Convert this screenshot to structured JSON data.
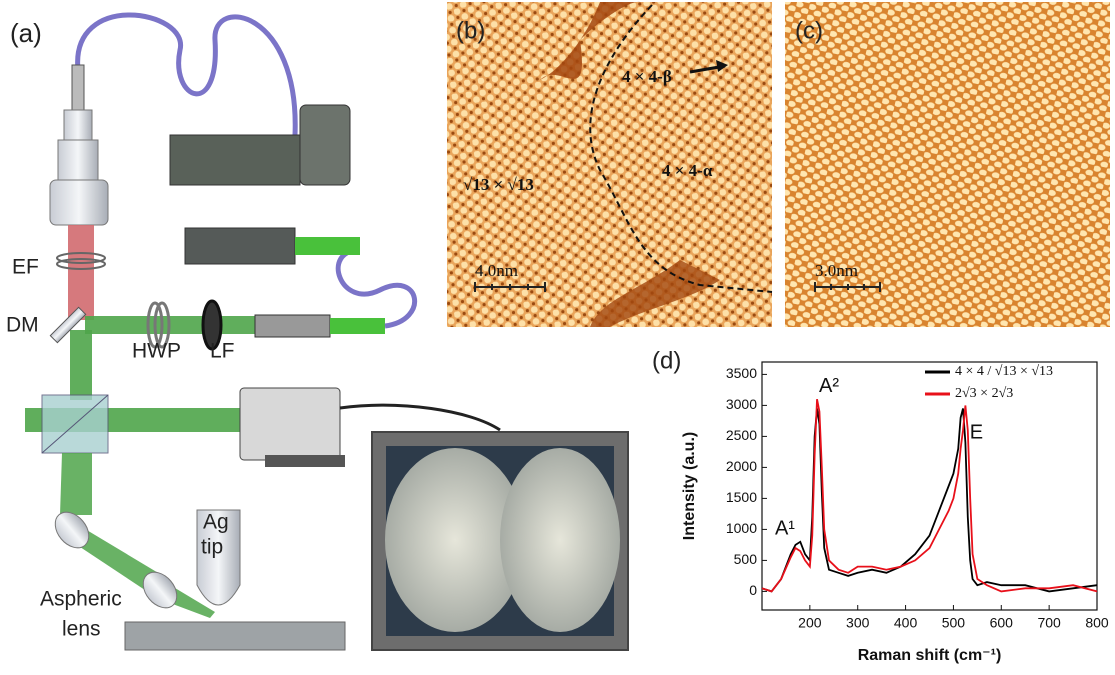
{
  "panel_a": {
    "label": "(a)",
    "ef": "EF",
    "dm": "DM",
    "hwp": "HWP",
    "lf": "LF",
    "lens_line1": "Aspheric",
    "lens_line2": "lens",
    "tip_line1": "Ag",
    "tip_line2": "tip"
  },
  "panel_b": {
    "label": "(b)",
    "beta": "4 × 4-β",
    "alpha": "4 × 4-α",
    "root13": "√13 × √13",
    "scale": "4.0nm"
  },
  "panel_c": {
    "label": "(c)",
    "scale": "3.0nm"
  },
  "panel_d": {
    "label": "(d)"
  },
  "chart_data": {
    "type": "line",
    "xlabel": "Raman shift (cm⁻¹)",
    "ylabel": "Intensity (a.u.)",
    "xlim": [
      100,
      800
    ],
    "ylim": [
      -300,
      3700
    ],
    "xticks": [
      200,
      300,
      400,
      500,
      600,
      700,
      800
    ],
    "yticks": [
      0,
      500,
      1000,
      1500,
      2000,
      2500,
      3000,
      3500
    ],
    "legend": "upper right",
    "annotations": [
      {
        "text": "A¹",
        "x": 148,
        "y": 1000
      },
      {
        "text": "A²",
        "x": 240,
        "y": 3300
      },
      {
        "text": "E",
        "x": 548,
        "y": 2550
      }
    ],
    "x": [
      100,
      120,
      140,
      160,
      170,
      180,
      190,
      200,
      205,
      210,
      215,
      220,
      225,
      230,
      240,
      260,
      280,
      300,
      330,
      360,
      390,
      420,
      450,
      470,
      490,
      500,
      510,
      515,
      520,
      525,
      530,
      535,
      540,
      550,
      570,
      600,
      650,
      700,
      750,
      800
    ],
    "series": [
      {
        "name": "4 × 4 / √13 × √13",
        "color": "#000000",
        "values": [
          50,
          0,
          200,
          600,
          750,
          800,
          600,
          500,
          1200,
          2500,
          2950,
          2700,
          1600,
          700,
          350,
          300,
          250,
          300,
          350,
          300,
          400,
          600,
          900,
          1300,
          1700,
          1900,
          2300,
          2800,
          2950,
          2400,
          1200,
          500,
          200,
          100,
          150,
          100,
          100,
          0,
          50,
          100
        ]
      },
      {
        "name": "2√3 × 2√3",
        "color": "#e8101a",
        "values": [
          50,
          0,
          200,
          550,
          700,
          650,
          500,
          400,
          900,
          2200,
          3100,
          2900,
          2000,
          1000,
          500,
          350,
          300,
          400,
          400,
          350,
          400,
          500,
          700,
          1000,
          1300,
          1500,
          1900,
          2300,
          2600,
          3000,
          2600,
          1500,
          600,
          200,
          100,
          0,
          50,
          50,
          100,
          0
        ]
      }
    ]
  }
}
